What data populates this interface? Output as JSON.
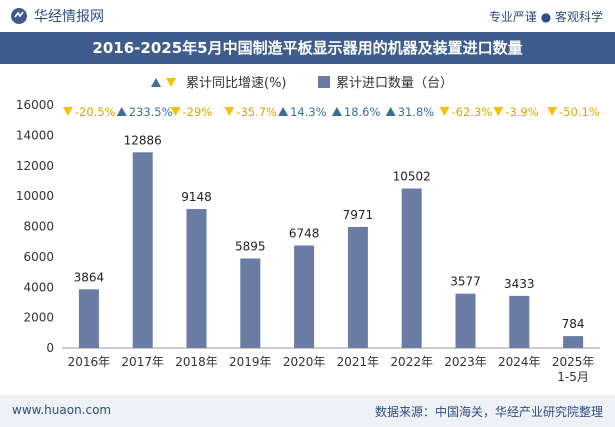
{
  "header": {
    "brand": "华经情报网",
    "tagline": "专业严谨 ● 客观科学"
  },
  "footer": {
    "website": "www.huaon.com",
    "source": "数据来源：中国海关，华经产业研究院整理"
  },
  "colors": {
    "bar": "#6a7ca3",
    "title_bg": "#3e5c8c",
    "growth_up": "#3a6e99",
    "growth_down": "#f5c100"
  },
  "chart_data": {
    "type": "bar",
    "title": "2016-2025年5月中国制造平板显示器用的机器及装置进口数量",
    "categories": [
      "2016年",
      "2017年",
      "2018年",
      "2019年",
      "2020年",
      "2021年",
      "2022年",
      "2023年",
      "2024年",
      "2025年\n1-5月"
    ],
    "series": [
      {
        "name": "累计进口数量（台）",
        "values": [
          3864,
          12886,
          9148,
          5895,
          6748,
          7971,
          10502,
          3577,
          3433,
          784
        ]
      },
      {
        "name": "累计同比增速(%)",
        "values": [
          -20.5,
          233.5,
          -29,
          -35.7,
          14.3,
          18.6,
          31.8,
          -62.3,
          -3.9,
          -50.1
        ]
      }
    ],
    "growth_labels": [
      "-20.5%",
      "233.5%",
      "-29%",
      "-35.7%",
      "14.3%",
      "18.6%",
      "31.8%",
      "-62.3%",
      "-3.9%",
      "-50.1%"
    ],
    "yticks": [
      "0",
      "2000",
      "4000",
      "6000",
      "8000",
      "10000",
      "12000",
      "14000",
      "16000"
    ],
    "ylim": [
      0,
      16000
    ],
    "legend_position": "top-center",
    "grid": false
  }
}
